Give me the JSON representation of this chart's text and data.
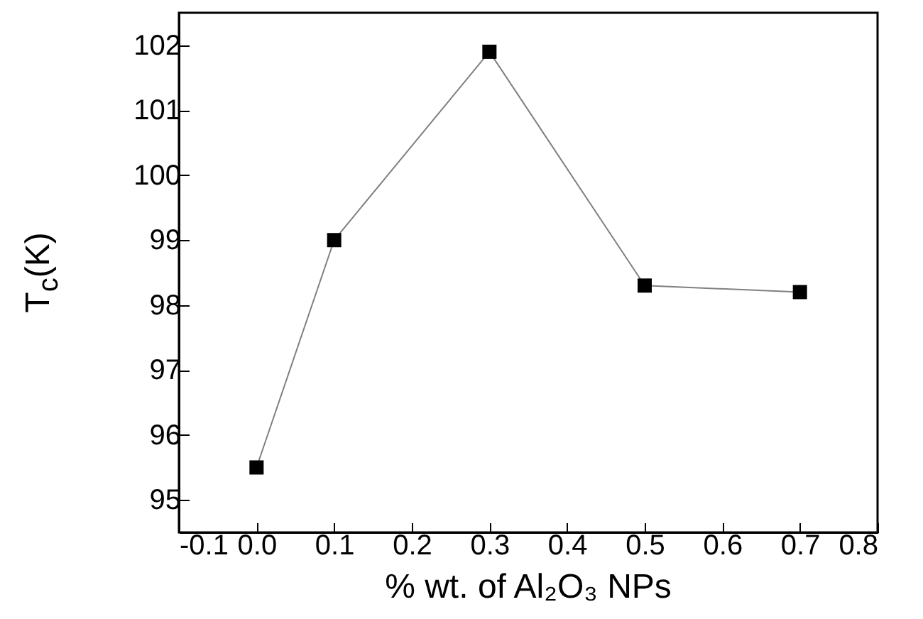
{
  "chart_data": {
    "type": "line",
    "xlabel": "% wt. of Al₂O₃ NPs",
    "ylabel": "T$_{c}$(K)",
    "x": [
      0.0,
      0.1,
      0.3,
      0.5,
      0.7
    ],
    "series": [
      {
        "color": "#000000",
        "values": [
          95.5,
          99.0,
          101.9,
          98.3,
          98.2
        ]
      }
    ],
    "xlim": [
      -0.1,
      0.8
    ],
    "xticks": [
      -0.1,
      {
        "value": 0,
        "label": "0.0"
      },
      0.1,
      0.2,
      0.3,
      0.4,
      0.5,
      0.6,
      0.7,
      0.8
    ],
    "ylim": [
      94.5,
      102.5
    ],
    "yticks": [
      95,
      96,
      97,
      98,
      99,
      100,
      101,
      102
    ],
    "marker": "square",
    "line_style": "solid"
  }
}
